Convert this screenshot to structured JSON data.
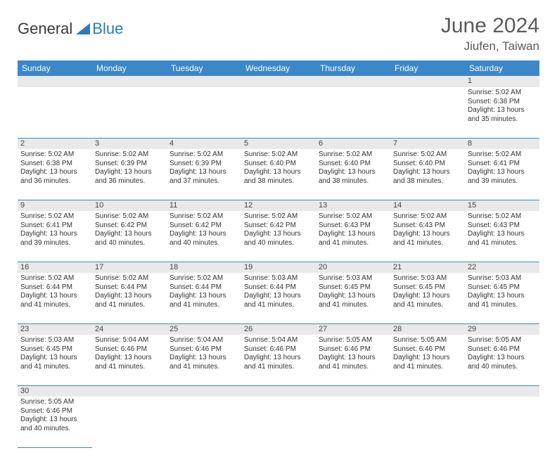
{
  "brand": {
    "part1": "General",
    "part2": "Blue"
  },
  "title": "June 2024",
  "location": "Jiufen, Taiwan",
  "colors": {
    "header_bg": "#3b87c8",
    "header_text": "#ffffff",
    "daynum_bg": "#e9e9e9",
    "border": "#3b87c8",
    "logo_blue": "#2b7bbf",
    "title_color": "#5a5a5a"
  },
  "weekdays": [
    "Sunday",
    "Monday",
    "Tuesday",
    "Wednesday",
    "Thursday",
    "Friday",
    "Saturday"
  ],
  "weeks": [
    [
      null,
      null,
      null,
      null,
      null,
      null,
      {
        "n": "1",
        "sr": "5:02 AM",
        "ss": "6:38 PM",
        "dl": "13 hours and 35 minutes."
      }
    ],
    [
      {
        "n": "2",
        "sr": "5:02 AM",
        "ss": "6:38 PM",
        "dl": "13 hours and 36 minutes."
      },
      {
        "n": "3",
        "sr": "5:02 AM",
        "ss": "6:39 PM",
        "dl": "13 hours and 36 minutes."
      },
      {
        "n": "4",
        "sr": "5:02 AM",
        "ss": "6:39 PM",
        "dl": "13 hours and 37 minutes."
      },
      {
        "n": "5",
        "sr": "5:02 AM",
        "ss": "6:40 PM",
        "dl": "13 hours and 38 minutes."
      },
      {
        "n": "6",
        "sr": "5:02 AM",
        "ss": "6:40 PM",
        "dl": "13 hours and 38 minutes."
      },
      {
        "n": "7",
        "sr": "5:02 AM",
        "ss": "6:40 PM",
        "dl": "13 hours and 38 minutes."
      },
      {
        "n": "8",
        "sr": "5:02 AM",
        "ss": "6:41 PM",
        "dl": "13 hours and 39 minutes."
      }
    ],
    [
      {
        "n": "9",
        "sr": "5:02 AM",
        "ss": "6:41 PM",
        "dl": "13 hours and 39 minutes."
      },
      {
        "n": "10",
        "sr": "5:02 AM",
        "ss": "6:42 PM",
        "dl": "13 hours and 40 minutes."
      },
      {
        "n": "11",
        "sr": "5:02 AM",
        "ss": "6:42 PM",
        "dl": "13 hours and 40 minutes."
      },
      {
        "n": "12",
        "sr": "5:02 AM",
        "ss": "6:42 PM",
        "dl": "13 hours and 40 minutes."
      },
      {
        "n": "13",
        "sr": "5:02 AM",
        "ss": "6:43 PM",
        "dl": "13 hours and 41 minutes."
      },
      {
        "n": "14",
        "sr": "5:02 AM",
        "ss": "6:43 PM",
        "dl": "13 hours and 41 minutes."
      },
      {
        "n": "15",
        "sr": "5:02 AM",
        "ss": "6:43 PM",
        "dl": "13 hours and 41 minutes."
      }
    ],
    [
      {
        "n": "16",
        "sr": "5:02 AM",
        "ss": "6:44 PM",
        "dl": "13 hours and 41 minutes."
      },
      {
        "n": "17",
        "sr": "5:02 AM",
        "ss": "6:44 PM",
        "dl": "13 hours and 41 minutes."
      },
      {
        "n": "18",
        "sr": "5:02 AM",
        "ss": "6:44 PM",
        "dl": "13 hours and 41 minutes."
      },
      {
        "n": "19",
        "sr": "5:03 AM",
        "ss": "6:44 PM",
        "dl": "13 hours and 41 minutes."
      },
      {
        "n": "20",
        "sr": "5:03 AM",
        "ss": "6:45 PM",
        "dl": "13 hours and 41 minutes."
      },
      {
        "n": "21",
        "sr": "5:03 AM",
        "ss": "6:45 PM",
        "dl": "13 hours and 41 minutes."
      },
      {
        "n": "22",
        "sr": "5:03 AM",
        "ss": "6:45 PM",
        "dl": "13 hours and 41 minutes."
      }
    ],
    [
      {
        "n": "23",
        "sr": "5:03 AM",
        "ss": "6:45 PM",
        "dl": "13 hours and 41 minutes."
      },
      {
        "n": "24",
        "sr": "5:04 AM",
        "ss": "6:46 PM",
        "dl": "13 hours and 41 minutes."
      },
      {
        "n": "25",
        "sr": "5:04 AM",
        "ss": "6:46 PM",
        "dl": "13 hours and 41 minutes."
      },
      {
        "n": "26",
        "sr": "5:04 AM",
        "ss": "6:46 PM",
        "dl": "13 hours and 41 minutes."
      },
      {
        "n": "27",
        "sr": "5:05 AM",
        "ss": "6:46 PM",
        "dl": "13 hours and 41 minutes."
      },
      {
        "n": "28",
        "sr": "5:05 AM",
        "ss": "6:46 PM",
        "dl": "13 hours and 41 minutes."
      },
      {
        "n": "29",
        "sr": "5:05 AM",
        "ss": "6:46 PM",
        "dl": "13 hours and 40 minutes."
      }
    ],
    [
      {
        "n": "30",
        "sr": "5:05 AM",
        "ss": "6:46 PM",
        "dl": "13 hours and 40 minutes."
      },
      null,
      null,
      null,
      null,
      null,
      null
    ]
  ],
  "labels": {
    "sunrise": "Sunrise: ",
    "sunset": "Sunset: ",
    "daylight": "Daylight: "
  }
}
